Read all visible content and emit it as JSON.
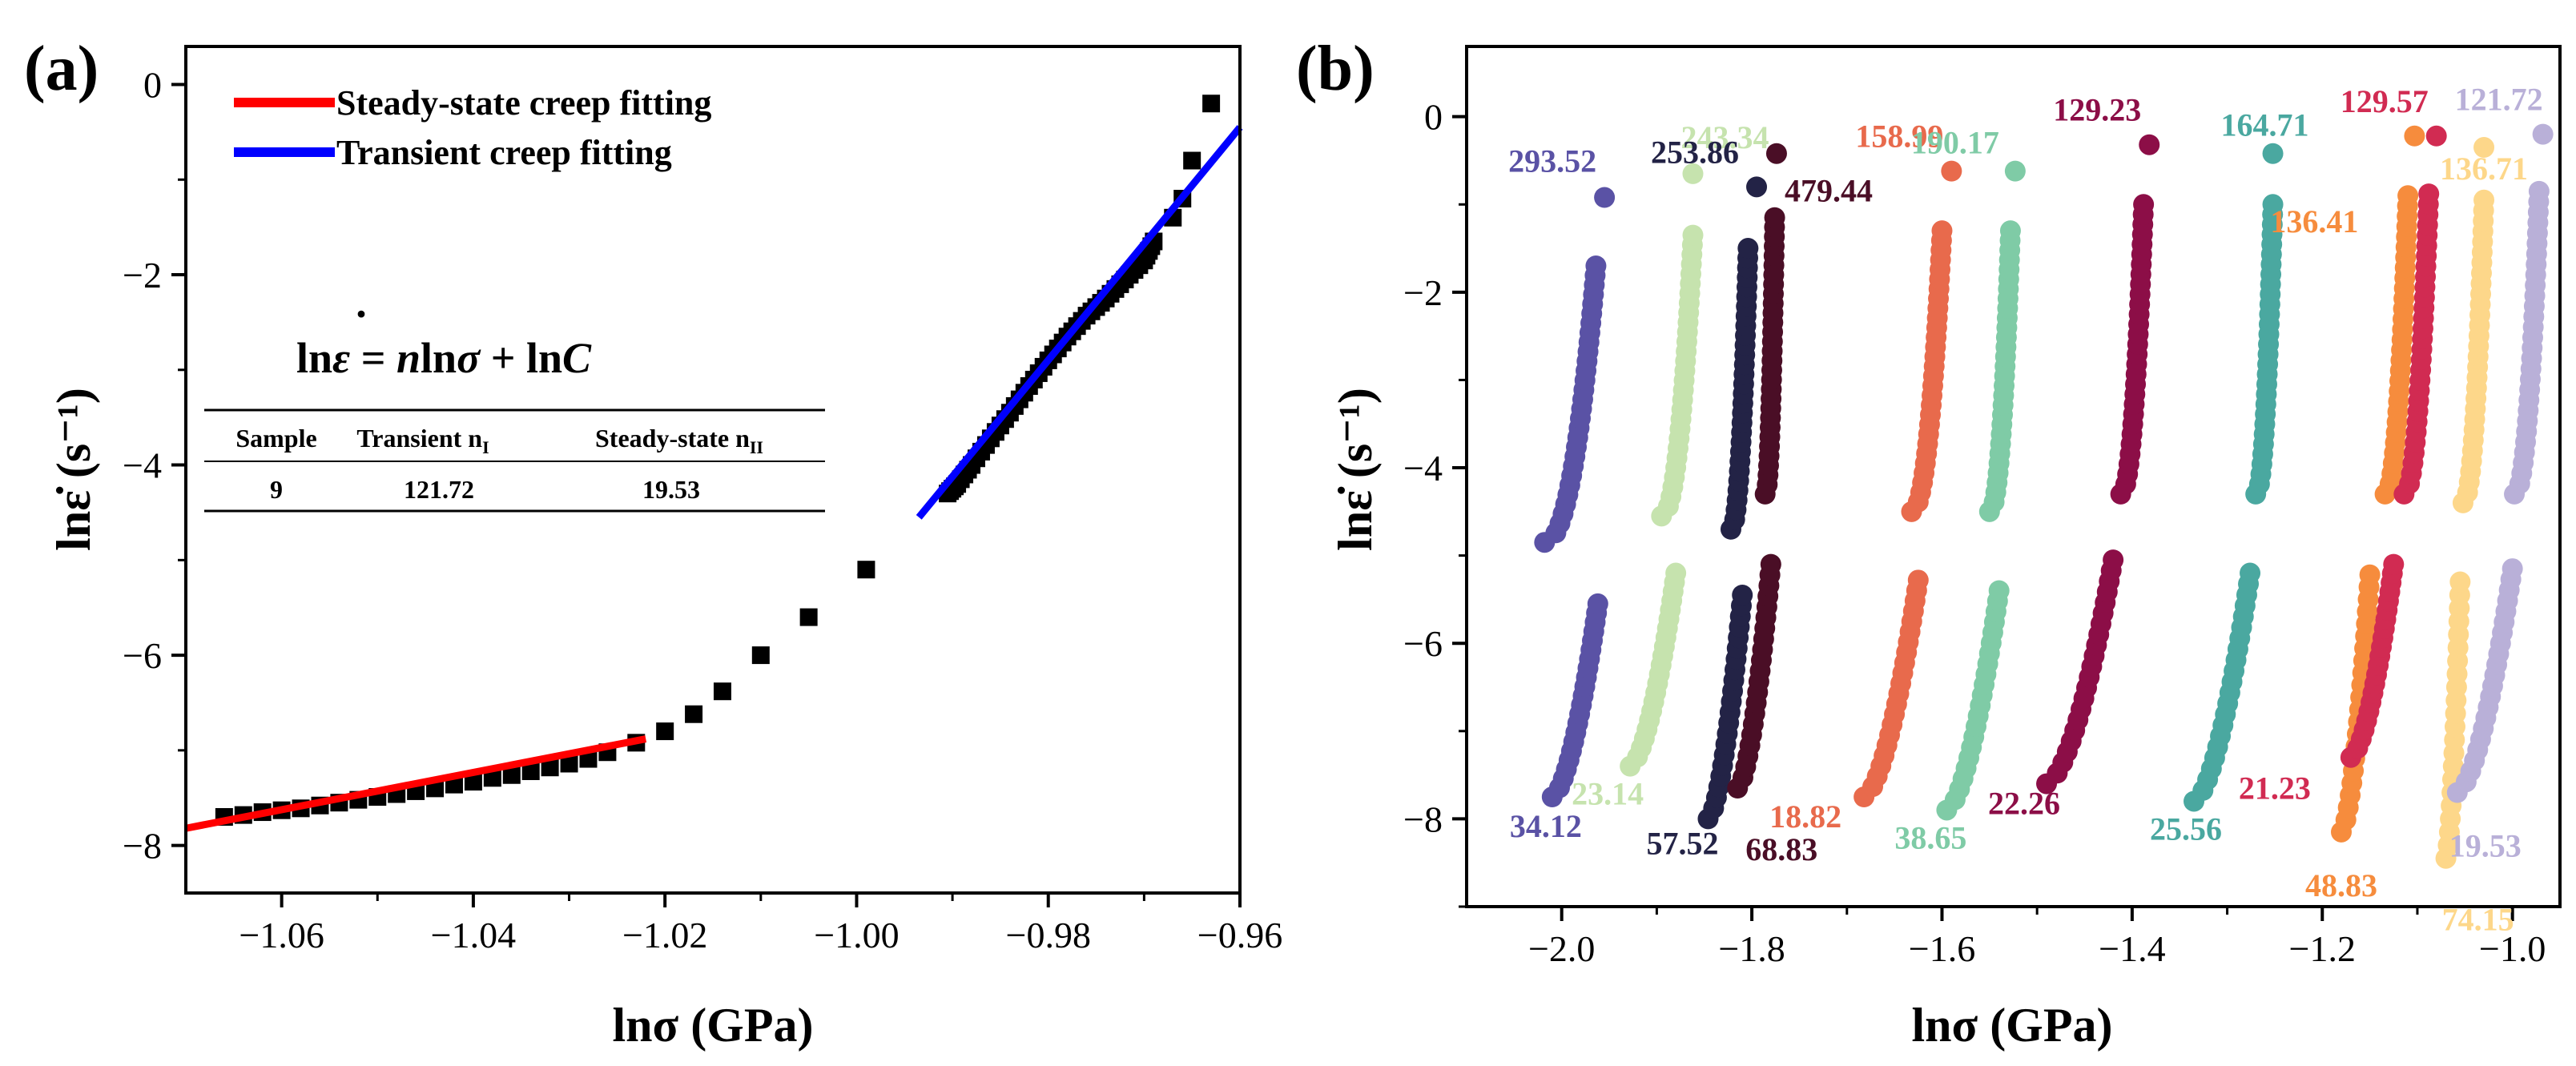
{
  "panels": {
    "a": {
      "label": "(a)"
    },
    "b": {
      "label": "(b)"
    }
  },
  "chart_data": [
    {
      "panel": "(a)",
      "type": "scatter",
      "xlabel": "lnσ (GPa)",
      "ylabel": "lnε̇ (s⁻¹)",
      "xlim": [
        -1.07,
        -0.96
      ],
      "ylim": [
        -8.5,
        0.4
      ],
      "xticks": [
        -1.06,
        -1.04,
        -1.02,
        -1.0,
        -0.98,
        -0.96
      ],
      "xtick_labels": [
        "−1.06",
        "−1.04",
        "−1.02",
        "−1.00",
        "−0.98",
        "−0.96"
      ],
      "yticks": [
        0,
        -2,
        -4,
        -6,
        -8
      ],
      "ytick_labels": [
        "0",
        "−2",
        "−4",
        "−6",
        "−8"
      ],
      "legend_position": "top-left",
      "legend": [
        {
          "label": "Steady-state creep fitting",
          "color": "#ff0000"
        },
        {
          "label": "Transient creep fitting",
          "color": "#0000ff"
        }
      ],
      "series": [
        {
          "marker": "square",
          "color": "#000000",
          "points_x": [
            -1.066,
            -1.064,
            -1.062,
            -1.06,
            -1.058,
            -1.056,
            -1.054,
            -1.052,
            -1.05,
            -1.048,
            -1.046,
            -1.044,
            -1.042,
            -1.04,
            -1.038,
            -1.036,
            -1.034,
            -1.032,
            -1.03,
            -1.028,
            -1.026,
            -1.023,
            -1.02,
            -1.017,
            -1.014,
            -1.01,
            -1.005,
            -0.999,
            -0.9905,
            -0.9895,
            -0.988,
            -0.986,
            -0.984,
            -0.982,
            -0.98,
            -0.978,
            -0.976,
            -0.974,
            -0.972,
            -0.97,
            -0.969,
            -0.967,
            -0.966,
            -0.965,
            -0.963
          ],
          "points_y": [
            -7.7,
            -7.68,
            -7.65,
            -7.63,
            -7.61,
            -7.58,
            -7.55,
            -7.52,
            -7.49,
            -7.46,
            -7.43,
            -7.4,
            -7.36,
            -7.33,
            -7.29,
            -7.26,
            -7.22,
            -7.18,
            -7.14,
            -7.09,
            -7.02,
            -6.92,
            -6.8,
            -6.62,
            -6.38,
            -6.0,
            -5.6,
            -5.1,
            -4.3,
            -4.2,
            -4.0,
            -3.72,
            -3.45,
            -3.17,
            -2.9,
            -2.65,
            -2.43,
            -2.25,
            -2.05,
            -1.85,
            -1.65,
            -1.4,
            -1.2,
            -0.8,
            -0.2
          ]
        },
        {
          "name": "Steady-state creep fitting",
          "type": "line",
          "color": "#ff0000",
          "x": [
            -1.07,
            -1.022
          ],
          "y": [
            -7.82,
            -6.88
          ]
        },
        {
          "name": "Transient creep fitting",
          "type": "line",
          "color": "#0000ff",
          "x": [
            -0.9935,
            -0.96
          ],
          "y": [
            -4.55,
            -0.45
          ]
        }
      ],
      "annotation": {
        "equation": {
          "a": "ln",
          "b": "ε",
          "b_dot": "·",
          "c": " = ",
          "d": "n",
          "e": "ln",
          "f": "σ",
          "g": " + ln",
          "h": "C"
        },
        "table": {
          "headers": [
            "Sample",
            "Transient n",
            "Steady-state n"
          ],
          "subscripts": [
            "",
            "I",
            "II"
          ],
          "row": [
            "9",
            "121.72",
            "19.53"
          ]
        }
      }
    },
    {
      "panel": "(b)",
      "type": "scatter",
      "xlabel": "lnσ (GPa)",
      "ylabel": "lnε̇ (s⁻¹)",
      "xlim": [
        -2.1,
        -0.95
      ],
      "ylim": [
        -9.0,
        0.8
      ],
      "xticks": [
        -2.0,
        -1.8,
        -1.6,
        -1.4,
        -1.2,
        -1.0
      ],
      "xtick_labels": [
        "−2.0",
        "−1.8",
        "−1.6",
        "−1.4",
        "−1.2",
        "−1.0"
      ],
      "yticks": [
        0,
        -2,
        -4,
        -6,
        -8
      ],
      "ytick_labels": [
        "0",
        "−2",
        "−4",
        "−6",
        "−8"
      ],
      "series": [
        {
          "color": "#5a52a5",
          "upper": {
            "x_start": -2.018,
            "x_end": -1.964,
            "y_bottom": -4.85,
            "y_top": -1.7,
            "outlier_x": -1.955,
            "outlier_y": -0.92,
            "label": "293.52"
          },
          "lower": {
            "x_start": -2.01,
            "x_end": -1.962,
            "y_bottom": -7.75,
            "y_top": -5.55,
            "label": "34.12"
          }
        },
        {
          "color": "#c6e3ae",
          "upper": {
            "x_start": -1.895,
            "x_end": -1.862,
            "y_bottom": -4.55,
            "y_top": -1.35,
            "outlier_x": -1.862,
            "outlier_y": -0.65,
            "label": "243.34"
          },
          "lower": {
            "x_start": -1.928,
            "x_end": -1.88,
            "y_bottom": -7.4,
            "y_top": -5.2,
            "label": "23.14"
          }
        },
        {
          "color": "#232346",
          "upper": {
            "x_start": -1.822,
            "x_end": -1.804,
            "y_bottom": -4.7,
            "y_top": -1.5,
            "outlier_x": -1.795,
            "outlier_y": -0.8,
            "label": "253.86"
          },
          "lower": {
            "x_start": -1.846,
            "x_end": -1.81,
            "y_bottom": -8.0,
            "y_top": -5.45,
            "label": "57.52"
          }
        },
        {
          "color": "#4a0e26",
          "upper": {
            "x_start": -1.786,
            "x_end": -1.776,
            "y_bottom": -4.3,
            "y_top": -1.15,
            "outlier_x": -1.774,
            "outlier_y": -0.42,
            "label": "479.44"
          },
          "lower": {
            "x_start": -1.815,
            "x_end": -1.78,
            "y_bottom": -7.65,
            "y_top": -5.1,
            "label": "68.83"
          }
        },
        {
          "color": "#e86a4c",
          "upper": {
            "x_start": -1.632,
            "x_end": -1.6,
            "y_bottom": -4.5,
            "y_top": -1.3,
            "outlier_x": -1.59,
            "outlier_y": -0.62,
            "label": "158.99"
          },
          "lower": {
            "x_start": -1.682,
            "x_end": -1.625,
            "y_bottom": -7.75,
            "y_top": -5.28,
            "label": "18.82"
          }
        },
        {
          "color": "#7fcba6",
          "upper": {
            "x_start": -1.55,
            "x_end": -1.528,
            "y_bottom": -4.5,
            "y_top": -1.3,
            "outlier_x": -1.523,
            "outlier_y": -0.62,
            "label": "190.17"
          },
          "lower": {
            "x_start": -1.595,
            "x_end": -1.54,
            "y_bottom": -7.9,
            "y_top": -5.4,
            "label": "38.65"
          }
        },
        {
          "color": "#8c0e47",
          "upper": {
            "x_start": -1.412,
            "x_end": -1.388,
            "y_bottom": -4.3,
            "y_top": -1.0,
            "outlier_x": -1.382,
            "outlier_y": -0.32,
            "label": "129.23"
          },
          "lower": {
            "x_start": -1.49,
            "x_end": -1.42,
            "y_bottom": -7.6,
            "y_top": -5.05,
            "label": "22.26"
          }
        },
        {
          "color": "#4aa8a0",
          "upper": {
            "x_start": -1.27,
            "x_end": -1.252,
            "y_bottom": -4.3,
            "y_top": -1.0,
            "outlier_x": -1.252,
            "outlier_y": -0.42,
            "label": "164.71"
          },
          "lower": {
            "x_start": -1.335,
            "x_end": -1.276,
            "y_bottom": -7.8,
            "y_top": -5.2,
            "label": "25.56"
          }
        },
        {
          "color": "#f68c3d",
          "upper": {
            "x_start": -1.134,
            "x_end": -1.11,
            "y_bottom": -4.3,
            "y_top": -0.9,
            "outlier_x": -1.103,
            "outlier_y": -0.22,
            "label": "136.41"
          },
          "lower": {
            "x_start": -1.18,
            "x_end": -1.15,
            "y_bottom": -8.15,
            "y_top": -5.22,
            "label": "48.83"
          }
        },
        {
          "color": "#d12b52",
          "upper": {
            "x_start": -1.114,
            "x_end": -1.088,
            "y_bottom": -4.3,
            "y_top": -0.88,
            "outlier_x": -1.08,
            "outlier_y": -0.22,
            "label": "129.57"
          },
          "lower": {
            "x_start": -1.17,
            "x_end": -1.125,
            "y_bottom": -7.3,
            "y_top": -5.1,
            "label": "21.23"
          }
        },
        {
          "color": "#fdd78a",
          "upper": {
            "x_start": -1.052,
            "x_end": -1.03,
            "y_bottom": -4.4,
            "y_top": -0.95,
            "outlier_x": -1.03,
            "outlier_y": -0.35,
            "label": "136.71"
          },
          "lower": {
            "x_start": -1.07,
            "x_end": -1.055,
            "y_bottom": -8.45,
            "y_top": -5.3,
            "label": "74.15"
          }
        },
        {
          "color": "#b9b0d8",
          "upper": {
            "x_start": -0.998,
            "x_end": -0.972,
            "y_bottom": -4.3,
            "y_top": -0.85,
            "outlier_x": -0.968,
            "outlier_y": -0.2,
            "label": "121.72"
          },
          "lower": {
            "x_start": -1.058,
            "x_end": -1.0,
            "y_bottom": -7.7,
            "y_top": -5.15,
            "label": "19.53"
          }
        }
      ]
    }
  ]
}
